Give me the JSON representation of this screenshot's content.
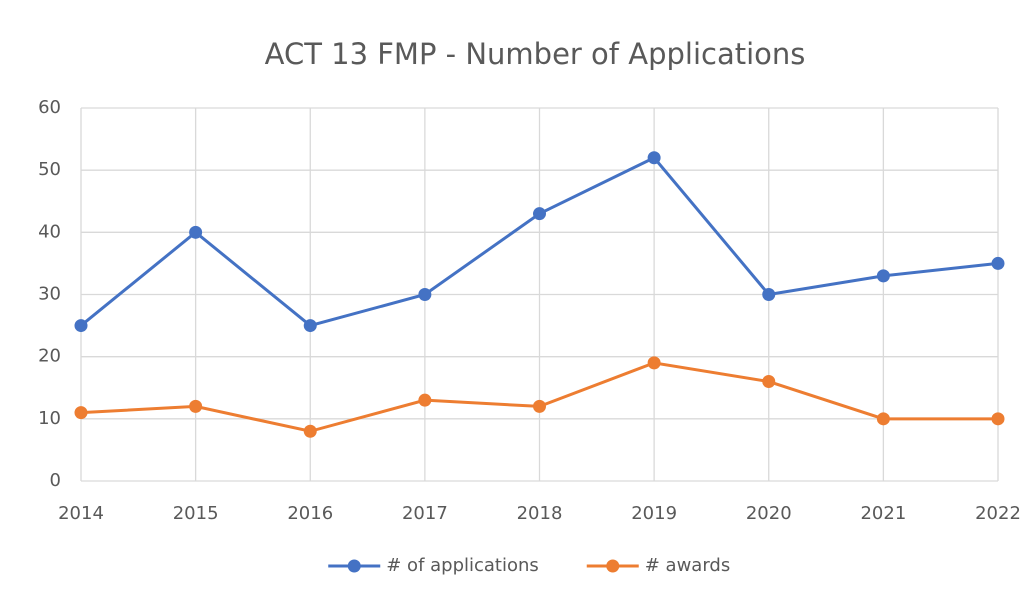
{
  "chart_data": {
    "type": "line",
    "title": "ACT 13 FMP - Number of Applications",
    "x": [
      2014,
      2015,
      2016,
      2017,
      2018,
      2019,
      2020,
      2021,
      2022
    ],
    "series": [
      {
        "name": "# of applications",
        "color": "#4472c4",
        "values": [
          25,
          40,
          25,
          30,
          43,
          52,
          30,
          33,
          35
        ]
      },
      {
        "name": "# awards",
        "color": "#ed7d31",
        "values": [
          11,
          12,
          8,
          13,
          12,
          19,
          16,
          10,
          10
        ]
      }
    ],
    "xlim": [
      2014,
      2022
    ],
    "xticks": [
      2014,
      2015,
      2016,
      2017,
      2018,
      2019,
      2020,
      2021,
      2022
    ],
    "ylim": [
      0,
      60
    ],
    "yticks": [
      0,
      10,
      20,
      30,
      40,
      50,
      60
    ],
    "grid": true,
    "legend": "bottom"
  }
}
